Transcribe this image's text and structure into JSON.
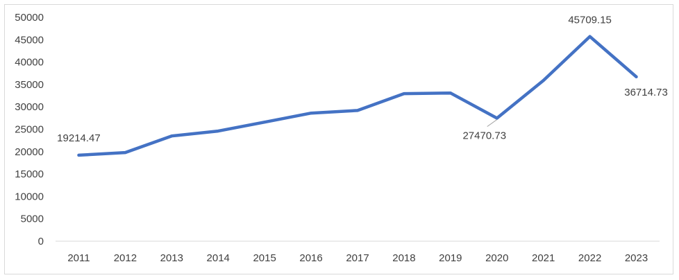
{
  "chart_data": {
    "type": "line",
    "title": "",
    "xlabel": "",
    "ylabel": "",
    "ylim": [
      0,
      50000
    ],
    "yticks": [
      0,
      5000,
      10000,
      15000,
      20000,
      25000,
      30000,
      35000,
      40000,
      45000,
      50000
    ],
    "categories": [
      "2011",
      "2012",
      "2013",
      "2014",
      "2015",
      "2016",
      "2017",
      "2018",
      "2019",
      "2020",
      "2021",
      "2022",
      "2023"
    ],
    "series": [
      {
        "color": "#4472c4",
        "values": [
          19214.47,
          19800,
          23500,
          24600,
          26600,
          28600,
          29200,
          32950,
          33100,
          27470.73,
          35900,
          45709.15,
          36714.73
        ]
      }
    ],
    "data_labels": [
      {
        "index": 0,
        "text": "19214.47"
      },
      {
        "index": 9,
        "text": "27470.73"
      },
      {
        "index": 11,
        "text": "45709.15"
      },
      {
        "index": 12,
        "text": "36714.73"
      }
    ],
    "grid": false,
    "legend": "none"
  }
}
